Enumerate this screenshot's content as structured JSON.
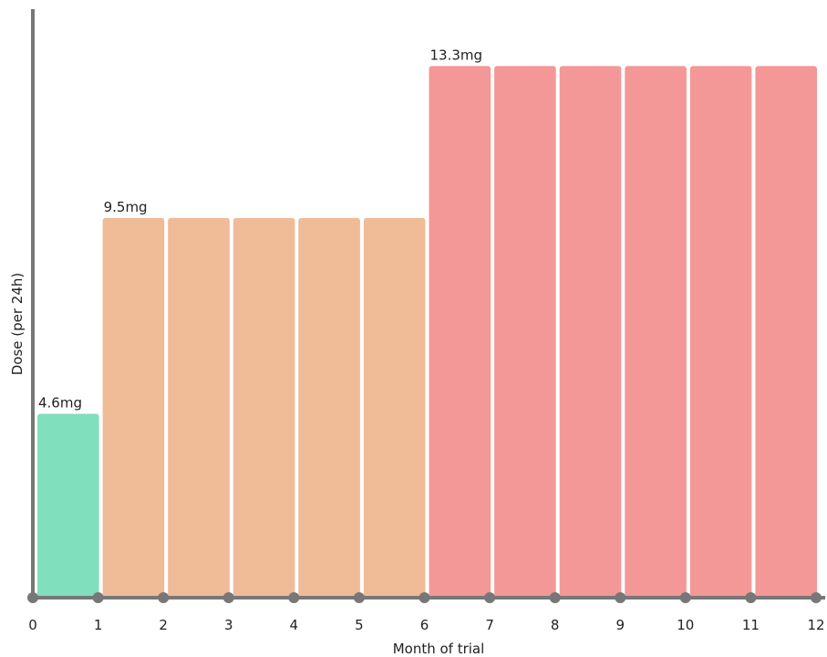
{
  "chart_data": {
    "type": "bar",
    "xlabel": "Month of trial",
    "ylabel": "Dose (per 24h)",
    "x_ticks": [
      "0",
      "1",
      "2",
      "3",
      "4",
      "5",
      "6",
      "7",
      "8",
      "9",
      "10",
      "11",
      "12"
    ],
    "categories": [
      "Month 1",
      "Month 2",
      "Month 3",
      "Month 4",
      "Month 5",
      "Month 6",
      "Month 7",
      "Month 8",
      "Month 9",
      "Month 10",
      "Month 11",
      "Month 12"
    ],
    "values": [
      4.6,
      9.5,
      9.5,
      9.5,
      9.5,
      9.5,
      13.3,
      13.3,
      13.3,
      13.3,
      13.3,
      13.3
    ],
    "bar_colors": [
      "#80dfbd",
      "#f0bb97",
      "#f0bb97",
      "#f0bb97",
      "#f0bb97",
      "#f0bb97",
      "#f39896",
      "#f39896",
      "#f39896",
      "#f39896",
      "#f39896",
      "#f39896"
    ],
    "annotations": [
      {
        "text": "4.6mg",
        "bar_index": 0
      },
      {
        "text": "9.5mg",
        "bar_index": 1
      },
      {
        "text": "13.3mg",
        "bar_index": 6
      }
    ],
    "ylim": [
      0,
      14.2
    ],
    "grid": false,
    "legend": "none",
    "axis_color": "#777777"
  }
}
